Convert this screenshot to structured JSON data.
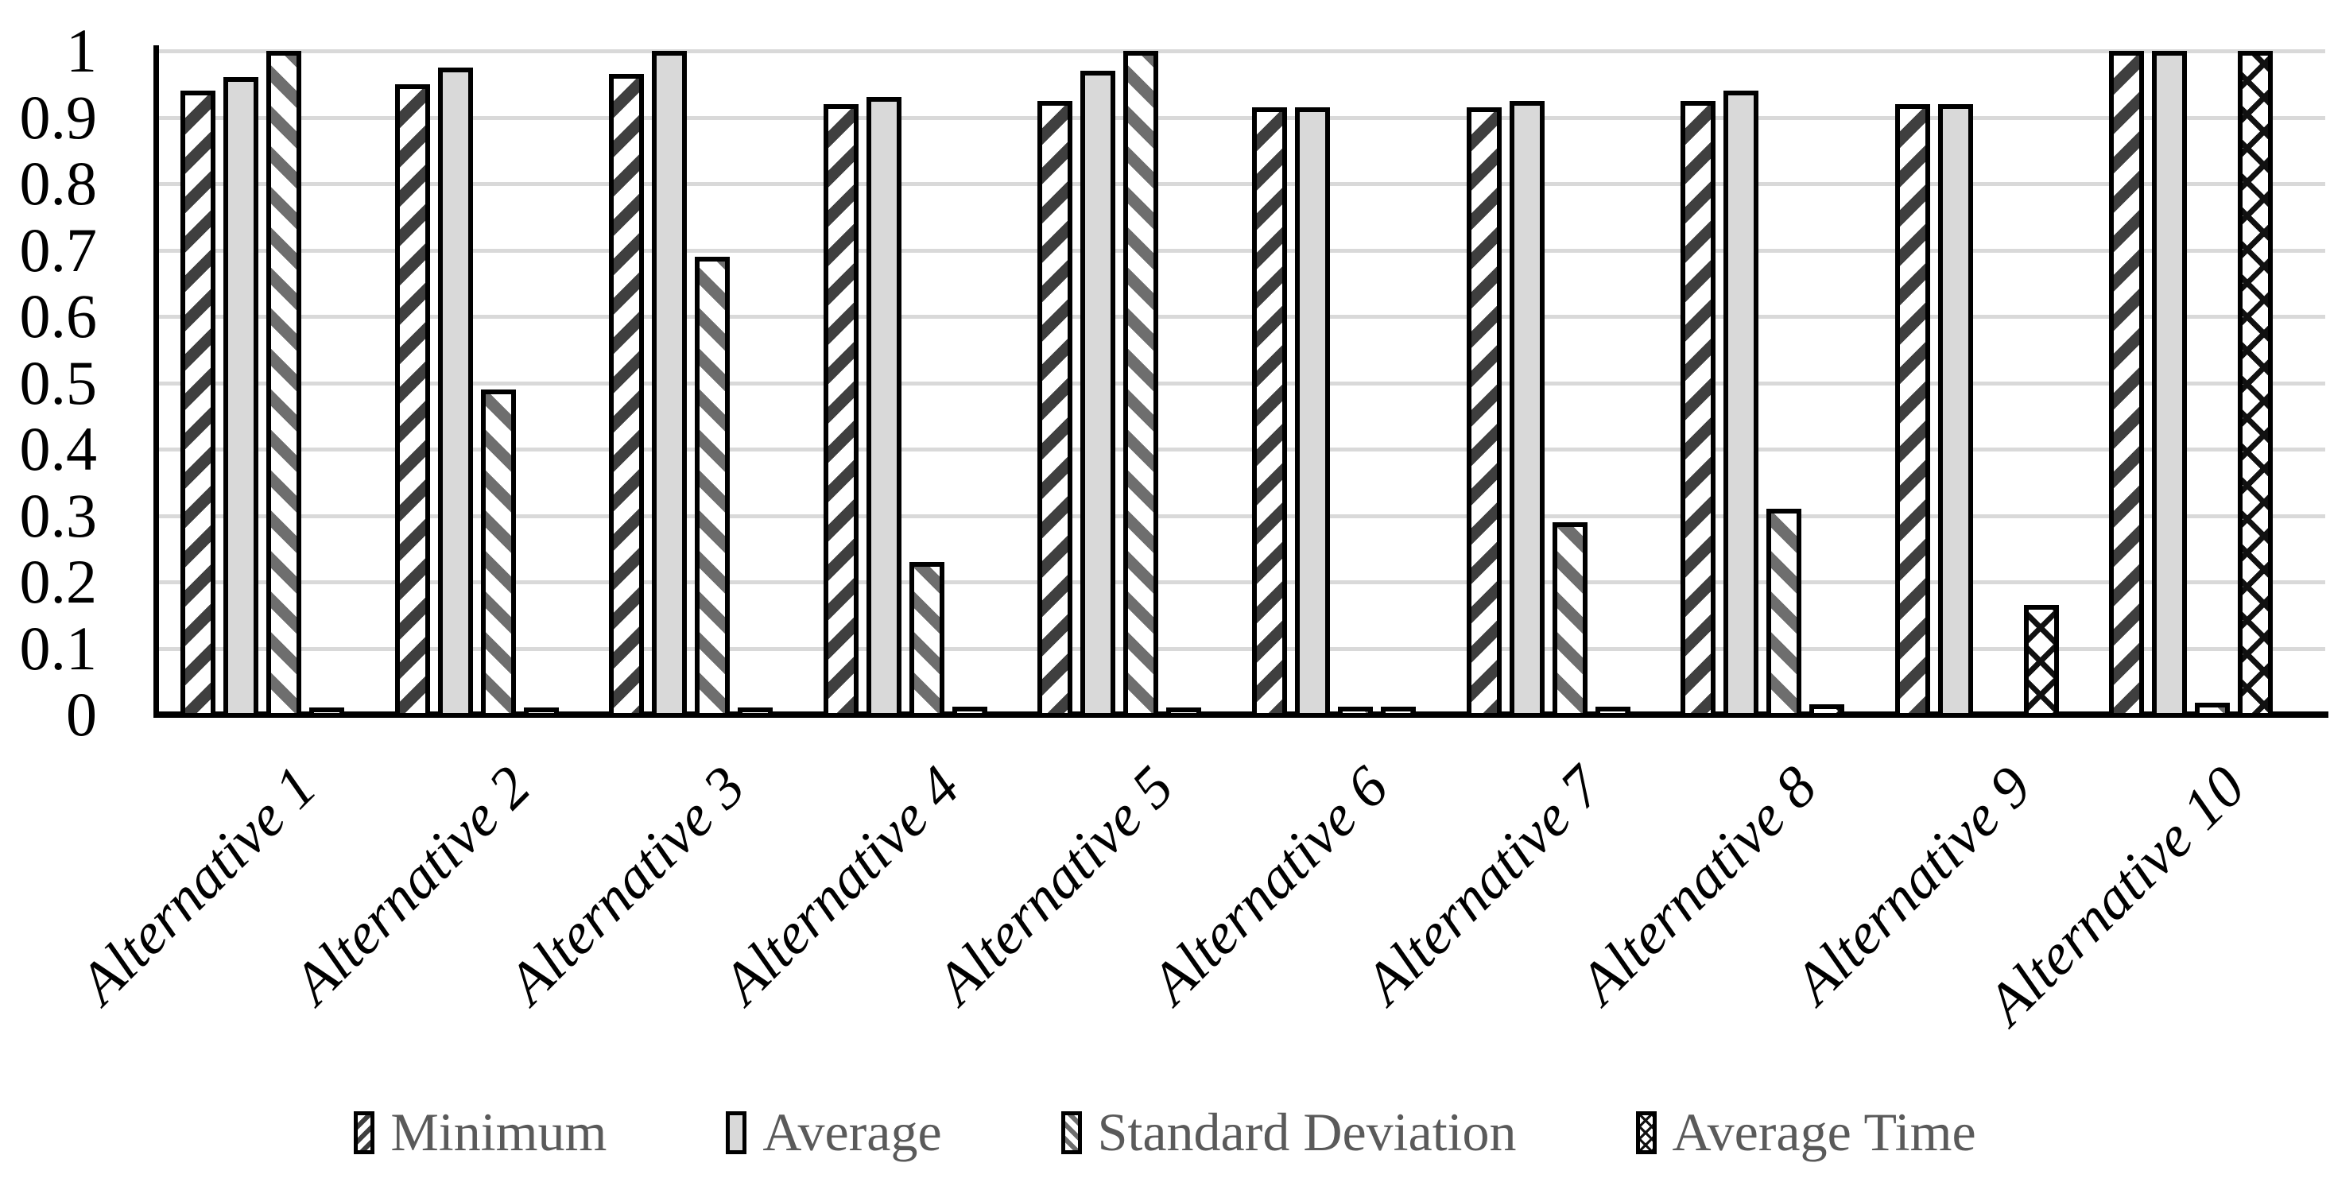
{
  "chart_data": {
    "type": "bar",
    "title": "",
    "xlabel": "",
    "ylabel": "",
    "categories": [
      "Alternative 1",
      "Alternative 2",
      "Alternative 3",
      "Alternative 4",
      "Alternative 5",
      "Alternative 6",
      "Alternative 7",
      "Alternative 8",
      "Alternative 9",
      "Alternative 10"
    ],
    "series": [
      {
        "name": "Minimum",
        "pattern": "diagonal-up",
        "values": [
          0.94,
          0.95,
          0.965,
          0.92,
          0.925,
          0.915,
          0.915,
          0.925,
          0.92,
          1.0
        ]
      },
      {
        "name": "Average",
        "pattern": "solid",
        "values": [
          0.96,
          0.975,
          1.0,
          0.93,
          0.97,
          0.915,
          0.925,
          0.94,
          0.92,
          1.0
        ]
      },
      {
        "name": "Standard Deviation",
        "pattern": "diagonal-down",
        "values": [
          1.0,
          0.49,
          0.69,
          0.23,
          1.0,
          0.012,
          0.29,
          0.31,
          0,
          0.018
        ]
      },
      {
        "name": "Average Time",
        "pattern": "crosshatch",
        "values": [
          0.005,
          0.006,
          0.01,
          0.012,
          0.006,
          0.012,
          0.012,
          0.015,
          0.165,
          1.0
        ]
      }
    ],
    "ylim": [
      0,
      1
    ],
    "y_ticks": [
      "1",
      "0.9",
      "0.8",
      "0.7",
      "0.6",
      "0.5",
      "0.4",
      "0.3",
      "0.2",
      "0.1",
      "0"
    ],
    "y_tick_values": [
      1,
      0.9,
      0.8,
      0.7,
      0.6,
      0.5,
      0.4,
      0.3,
      0.2,
      0.1,
      0
    ],
    "grid": true,
    "legend_position": "bottom",
    "colors": {
      "minimum_stripe": "#3f3f3f",
      "average_fill": "#d9d9d9",
      "stdev_stripe": "#6e6e6e",
      "crosshatch_line": "#111111",
      "bar_border": "#000000",
      "gridline": "#d9d9d9",
      "axis": "#000000",
      "tick_label": "#000000",
      "legend_text": "#5a5a5a",
      "background": "#ffffff"
    }
  }
}
